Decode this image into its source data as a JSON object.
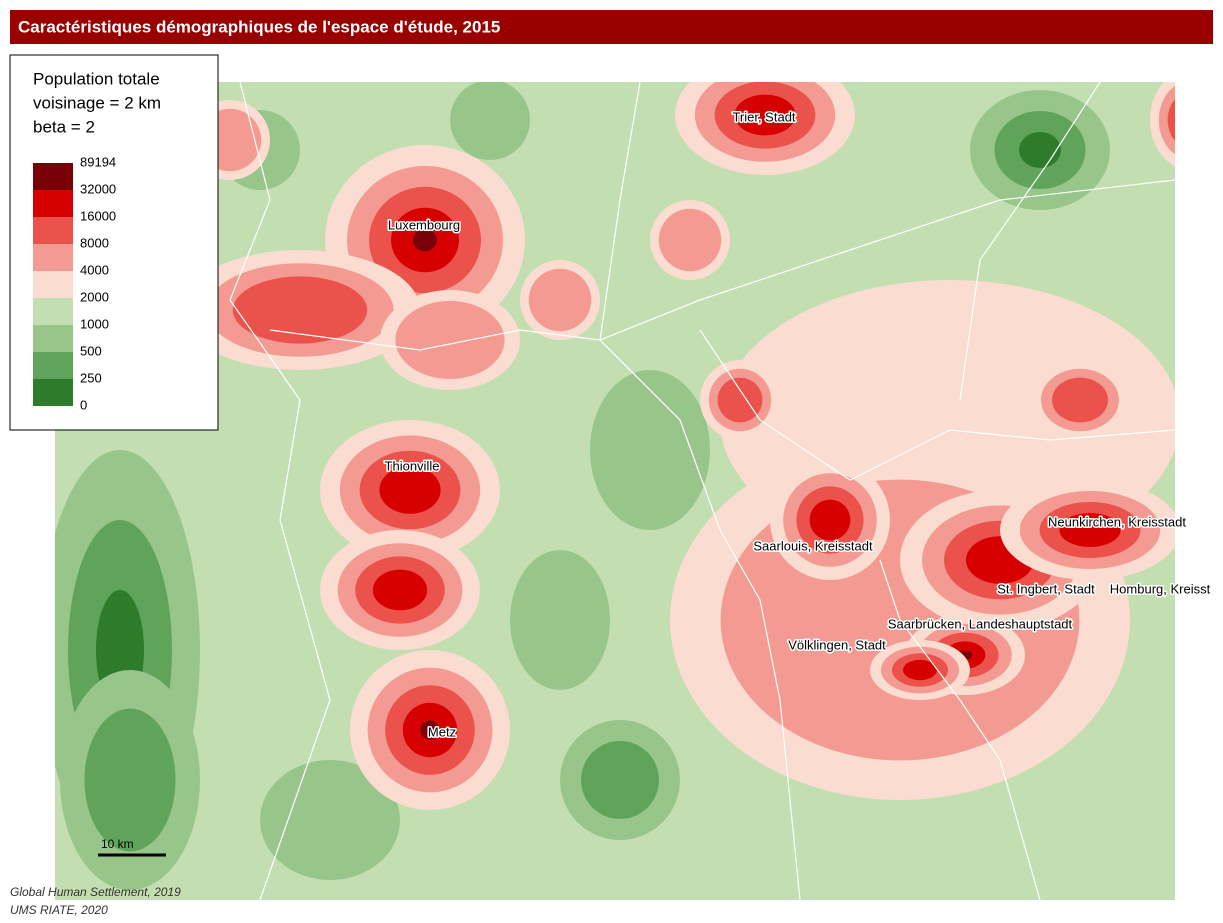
{
  "title": "Caractéristiques démographiques de l'espace d'étude, 2015",
  "legend": {
    "title": [
      "Population totale",
      "voisinage = 2 km",
      "beta = 2"
    ],
    "breaks": [
      89194,
      32000,
      16000,
      8000,
      4000,
      2000,
      1000,
      500,
      250,
      0
    ],
    "colors": [
      "#7a0008",
      "#d70000",
      "#ea524b",
      "#f39b93",
      "#fbdcd0",
      "#c3dfb1",
      "#98c68a",
      "#5fa45a",
      "#2d7c2c"
    ]
  },
  "places": [
    "Trier, Stadt",
    "Luxembourg",
    "Thionville",
    "Metz",
    "Saarlouis, Kreisstadt",
    "Neunkirchen, Kreisstadt",
    "St. Ingbert, Stadt",
    "Homburg, Kreisst",
    "Saarbrücken, Landeshauptstadt",
    "Völklingen, Stadt"
  ],
  "scale_bar": "10 km",
  "sources": [
    "Global Human Settlement, 2019",
    "UMS RIATE, 2020"
  ]
}
